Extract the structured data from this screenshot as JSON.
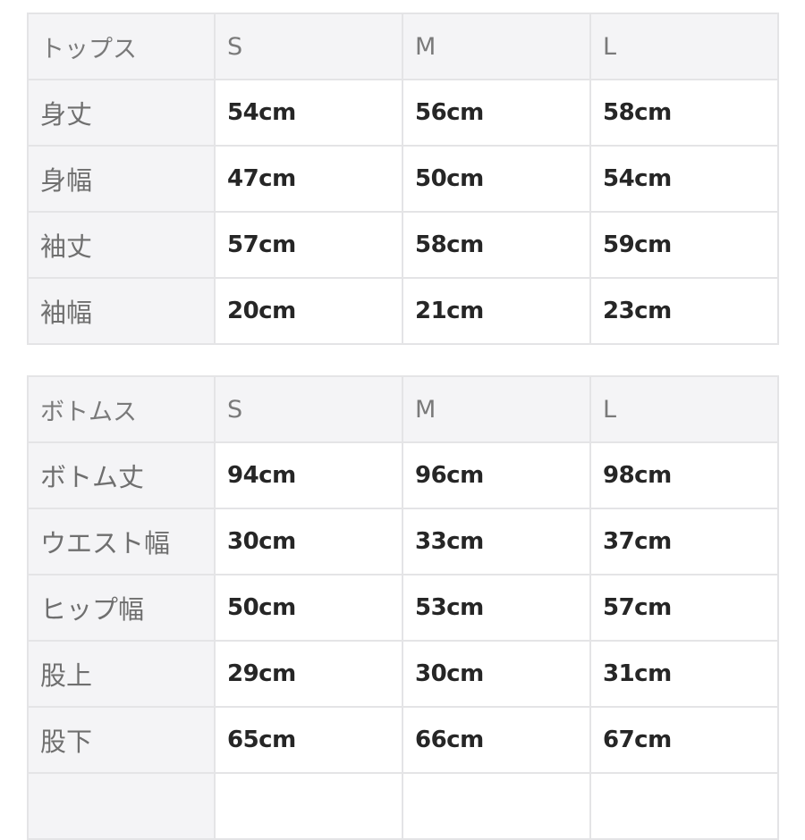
{
  "tops": {
    "header": [
      "トップス",
      "S",
      "M",
      "L"
    ],
    "rows": [
      {
        "label": "身丈",
        "values": [
          "54cm",
          "56cm",
          "58cm"
        ]
      },
      {
        "label": "身幅",
        "values": [
          "47cm",
          "50cm",
          "54cm"
        ]
      },
      {
        "label": "袖丈",
        "values": [
          "57cm",
          "58cm",
          "59cm"
        ]
      },
      {
        "label": "袖幅",
        "values": [
          "20cm",
          "21cm",
          "23cm"
        ]
      }
    ]
  },
  "bottoms": {
    "header": [
      "ボトムス",
      "S",
      "M",
      "L"
    ],
    "rows": [
      {
        "label": "ボトム丈",
        "values": [
          "94cm",
          "96cm",
          "98cm"
        ]
      },
      {
        "label": "ウエスト幅",
        "values": [
          "30cm",
          "33cm",
          "37cm"
        ]
      },
      {
        "label": "ヒップ幅",
        "values": [
          "50cm",
          "53cm",
          "57cm"
        ]
      },
      {
        "label": "股上",
        "values": [
          "29cm",
          "30cm",
          "31cm"
        ]
      },
      {
        "label": "股下",
        "values": [
          "65cm",
          "66cm",
          "67cm"
        ]
      },
      {
        "label": "",
        "values": [
          "",
          "",
          ""
        ]
      }
    ]
  }
}
